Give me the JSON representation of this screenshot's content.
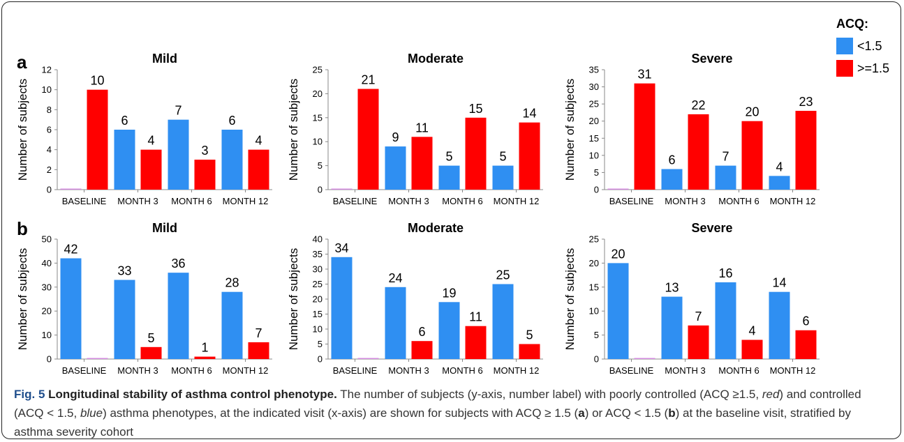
{
  "legend": {
    "title": "ACQ:",
    "items": [
      {
        "label": "<1.5",
        "color": "#2f8ff2"
      },
      {
        "label": ">=1.5",
        "color": "#ff0000"
      }
    ]
  },
  "colors": {
    "low": "#2f8ff2",
    "high": "#ff0000"
  },
  "panels": [
    {
      "letter": "a"
    },
    {
      "letter": "b"
    }
  ],
  "chart_data": [
    {
      "type": "bar",
      "panel": "a",
      "title": "Mild",
      "ylabel": "Number of subjects",
      "categories": [
        "BASELINE",
        "MONTH 3",
        "MONTH 6",
        "MONTH 12"
      ],
      "ylim": [
        0,
        12
      ],
      "yticks": [
        0,
        2,
        4,
        6,
        8,
        10,
        12
      ],
      "series": [
        {
          "name": "<1.5",
          "values": [
            0,
            6,
            7,
            6
          ],
          "labels": [
            "",
            "6",
            "7",
            "6"
          ]
        },
        {
          "name": ">=1.5",
          "values": [
            10,
            4,
            3,
            4
          ],
          "labels": [
            "10",
            "4",
            "3",
            "4"
          ]
        }
      ]
    },
    {
      "type": "bar",
      "panel": "a",
      "title": "Moderate",
      "ylabel": "Number of subjects",
      "categories": [
        "BASELINE",
        "MONTH 3",
        "MONTH 6",
        "MONTH 12"
      ],
      "ylim": [
        0,
        25
      ],
      "yticks": [
        0,
        5,
        10,
        15,
        20,
        25
      ],
      "series": [
        {
          "name": "<1.5",
          "values": [
            0,
            9,
            5,
            5
          ],
          "labels": [
            "",
            "9",
            "5",
            "5"
          ]
        },
        {
          "name": ">=1.5",
          "values": [
            21,
            11,
            15,
            14
          ],
          "labels": [
            "21",
            "11",
            "15",
            "14"
          ]
        }
      ]
    },
    {
      "type": "bar",
      "panel": "a",
      "title": "Severe",
      "ylabel": "Number of subjects",
      "categories": [
        "BASELINE",
        "MONTH 3",
        "MONTH 6",
        "MONTH 12"
      ],
      "ylim": [
        0,
        35
      ],
      "yticks": [
        0,
        5,
        10,
        15,
        20,
        25,
        30,
        35
      ],
      "series": [
        {
          "name": "<1.5",
          "values": [
            0,
            6,
            7,
            4
          ],
          "labels": [
            "",
            "6",
            "7",
            "4"
          ]
        },
        {
          "name": ">=1.5",
          "values": [
            31,
            22,
            20,
            23
          ],
          "labels": [
            "31",
            "22",
            "20",
            "23"
          ]
        }
      ]
    },
    {
      "type": "bar",
      "panel": "b",
      "title": "Mild",
      "ylabel": "Number of subjects",
      "categories": [
        "BASELINE",
        "MONTH 3",
        "MONTH 6",
        "MONTH 12"
      ],
      "ylim": [
        0,
        50
      ],
      "yticks": [
        0,
        10,
        20,
        30,
        40,
        50
      ],
      "series": [
        {
          "name": "<1.5",
          "values": [
            42,
            33,
            36,
            28
          ],
          "labels": [
            "42",
            "33",
            "36",
            "28"
          ]
        },
        {
          "name": ">=1.5",
          "values": [
            0,
            5,
            1,
            7
          ],
          "labels": [
            "",
            "5",
            "1",
            "7"
          ]
        }
      ]
    },
    {
      "type": "bar",
      "panel": "b",
      "title": "Moderate",
      "ylabel": "Number of subjects",
      "categories": [
        "BASELINE",
        "MONTH 3",
        "MONTH 6",
        "MONTH 12"
      ],
      "ylim": [
        0,
        40
      ],
      "yticks": [
        0,
        5,
        10,
        15,
        20,
        25,
        30,
        35,
        40
      ],
      "series": [
        {
          "name": "<1.5",
          "values": [
            34,
            24,
            19,
            25
          ],
          "labels": [
            "34",
            "24",
            "19",
            "25"
          ]
        },
        {
          "name": ">=1.5",
          "values": [
            0,
            6,
            11,
            5
          ],
          "labels": [
            "",
            "6",
            "11",
            "5"
          ]
        }
      ]
    },
    {
      "type": "bar",
      "panel": "b",
      "title": "Severe",
      "ylabel": "Number of subjects",
      "categories": [
        "BASELINE",
        "MONTH 3",
        "MONTH 6",
        "MONTH 12"
      ],
      "ylim": [
        0,
        25
      ],
      "yticks": [
        0,
        5,
        10,
        15,
        20,
        25
      ],
      "series": [
        {
          "name": "<1.5",
          "values": [
            20,
            13,
            16,
            14
          ],
          "labels": [
            "20",
            "13",
            "16",
            "14"
          ]
        },
        {
          "name": ">=1.5",
          "values": [
            0,
            7,
            4,
            6
          ],
          "labels": [
            "",
            "7",
            "4",
            "6"
          ]
        }
      ]
    }
  ],
  "caption": {
    "fig_label": "Fig. 5",
    "title": "Longitudinal stability of asthma control phenotype.",
    "parts": [
      {
        "t": " The number of subjects (y-axis, number label) with poorly controlled (ACQ ≥1.5, ",
        "s": ""
      },
      {
        "t": "red",
        "s": "i"
      },
      {
        "t": ") and controlled (ACQ < 1.5, ",
        "s": ""
      },
      {
        "t": "blue",
        "s": "i"
      },
      {
        "t": ") asthma phenotypes, at the indicated visit (x-axis) are shown for subjects with ACQ ≥ 1.5 (",
        "s": ""
      },
      {
        "t": "a",
        "s": "b"
      },
      {
        "t": ") or ACQ < 1.5 (",
        "s": ""
      },
      {
        "t": "b",
        "s": "b"
      },
      {
        "t": ") at the baseline visit, stratified by asthma severity cohort",
        "s": ""
      }
    ]
  }
}
